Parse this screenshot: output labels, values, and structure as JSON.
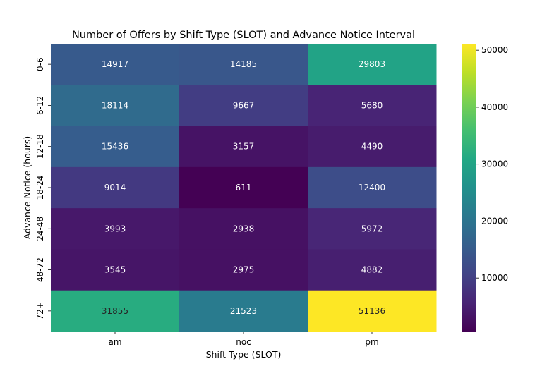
{
  "chart_data": {
    "type": "heatmap",
    "title": "Number of Offers by Shift Type (SLOT) and Advance Notice Interval",
    "xlabel": "Shift Type (SLOT)",
    "ylabel": "Advance Notice (hours)",
    "x_categories": [
      "am",
      "noc",
      "pm"
    ],
    "y_categories": [
      "0-6",
      "6-12",
      "12-18",
      "18-24",
      "24-48",
      "48-72",
      "72+"
    ],
    "values": [
      [
        14917,
        14185,
        29803
      ],
      [
        18114,
        9667,
        5680
      ],
      [
        15436,
        3157,
        4490
      ],
      [
        9014,
        611,
        12400
      ],
      [
        3993,
        2938,
        5972
      ],
      [
        3545,
        2975,
        4882
      ],
      [
        31855,
        21523,
        51136
      ]
    ],
    "colormap": "viridis",
    "color_range": [
      611,
      51136
    ],
    "colorbar_ticks": [
      10000,
      20000,
      30000,
      40000,
      50000
    ],
    "colorbar_tick_labels": [
      "10000",
      "20000",
      "30000",
      "40000",
      "50000"
    ],
    "annotations": true
  }
}
